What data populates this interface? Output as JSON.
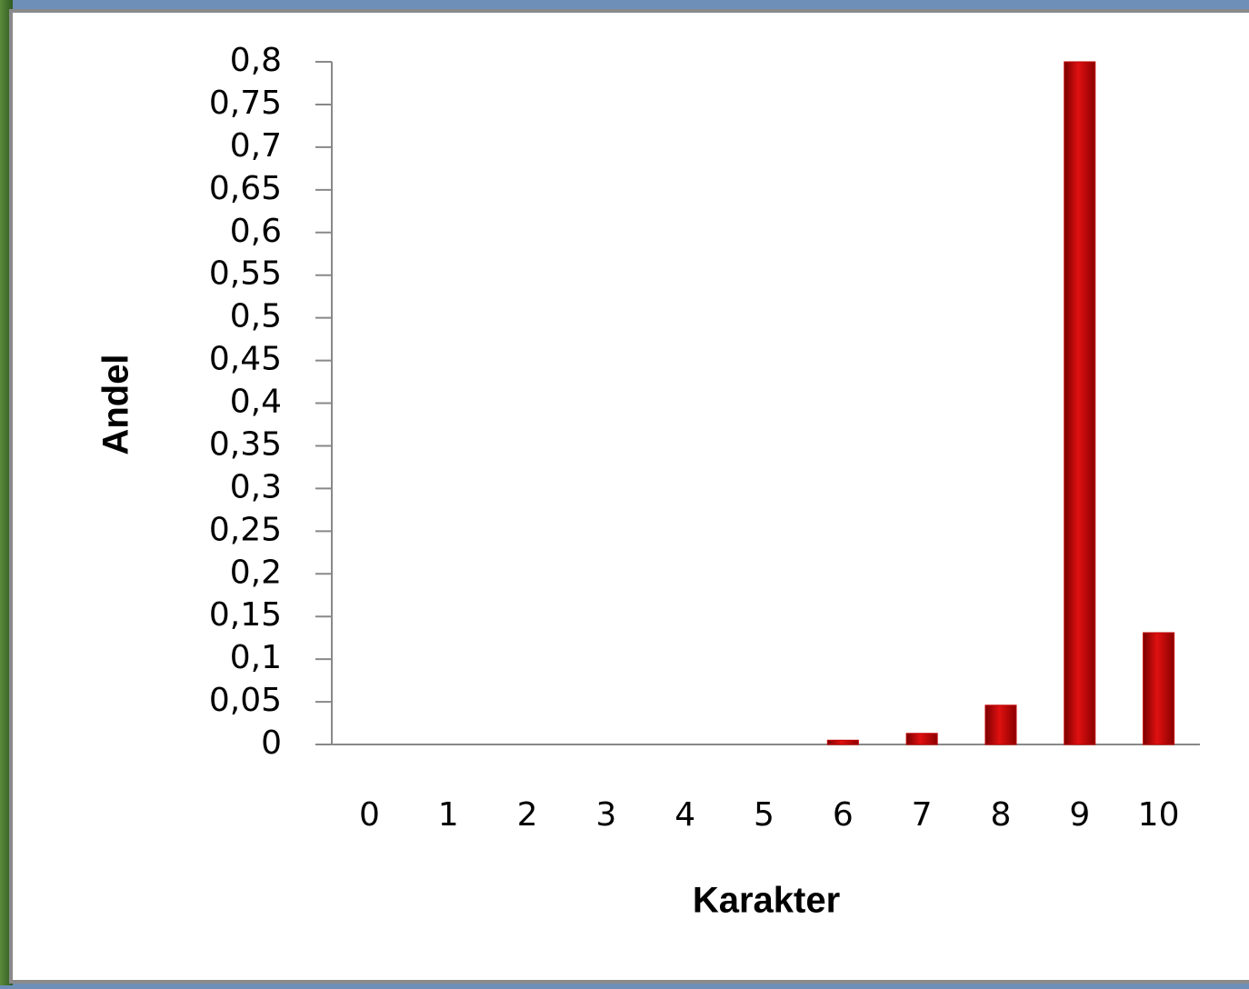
{
  "chart_data": {
    "type": "bar",
    "x_label": "Karakter",
    "y_label": "Andel",
    "categories": [
      "0",
      "1",
      "2",
      "3",
      "4",
      "5",
      "6",
      "7",
      "8",
      "9",
      "10"
    ],
    "values": [
      0,
      0,
      0,
      0,
      0,
      0,
      0.005,
      0.013,
      0.046,
      0.8,
      0.131
    ],
    "color": "#c00000",
    "ylim": [
      0,
      0.8
    ],
    "yticks": [
      0,
      {
        "value": 0.05,
        "label": "0,05"
      },
      {
        "value": 0.1,
        "label": "0,1"
      },
      {
        "value": 0.15,
        "label": "0,15"
      },
      {
        "value": 0.2,
        "label": "0,2"
      },
      {
        "value": 0.25,
        "label": "0,25"
      },
      {
        "value": 0.3,
        "label": "0,3"
      },
      {
        "value": 0.35,
        "label": "0,35"
      },
      {
        "value": 0.4,
        "label": "0,4"
      },
      {
        "value": 0.45,
        "label": "0,45"
      },
      {
        "value": 0.5,
        "label": "0,5"
      },
      {
        "value": 0.55,
        "label": "0,55"
      },
      {
        "value": 0.6,
        "label": "0,6"
      },
      {
        "value": 0.65,
        "label": "0,65"
      },
      {
        "value": 0.7,
        "label": "0,7"
      },
      {
        "value": 0.75,
        "label": "0,75"
      },
      {
        "value": 0.8,
        "label": "0,8"
      }
    ],
    "grid": false
  }
}
